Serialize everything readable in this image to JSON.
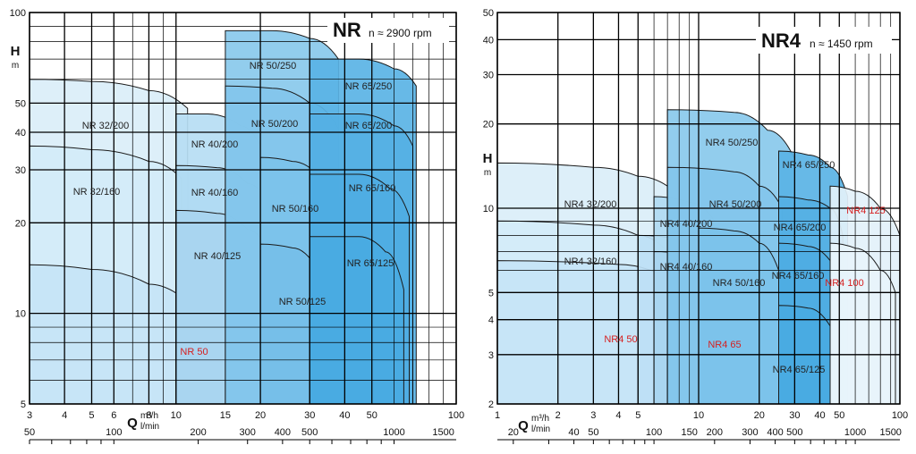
{
  "chart_data": [
    {
      "type": "area",
      "title": "NR",
      "subtitle": "n ≈ 2900 rpm",
      "ylabel": "H",
      "ylabel_unit": "m",
      "xlabel": "Q",
      "xlabel_units": [
        "m³/h",
        "l/min"
      ],
      "xscale": "log",
      "yscale": "log",
      "xlim": [
        3,
        100
      ],
      "ylim": [
        5,
        100
      ],
      "x_ticks_m3h": [
        "3",
        "4",
        "5",
        "6",
        "8",
        "10",
        "15",
        "20",
        "30",
        "40",
        "50",
        "100"
      ],
      "x_tick_vals_m3h": [
        3,
        4,
        5,
        6,
        8,
        10,
        15,
        20,
        30,
        40,
        50,
        100
      ],
      "x_ticks_lmin": [
        "50",
        "100",
        "200",
        "300",
        "400",
        "500",
        "1000",
        "1500"
      ],
      "x_tick_vals_lmin": [
        50,
        100,
        200,
        300,
        400,
        500,
        1000,
        1500
      ],
      "y_ticks": [
        "5",
        "10",
        "20",
        "30",
        "40",
        "50",
        "100"
      ],
      "y_tick_vals": [
        5,
        10,
        20,
        30,
        40,
        50,
        100
      ],
      "grid": true,
      "series": [
        {
          "name": "NR 32/200",
          "color": "#daeef9",
          "points": [
            [
              3,
              60
            ],
            [
              5,
              59
            ],
            [
              8,
              55
            ],
            [
              11,
              48
            ]
          ]
        },
        {
          "name": "NR 32/160",
          "color": "#d2ebf8",
          "points": [
            [
              3,
              36
            ],
            [
              5,
              35
            ],
            [
              8,
              32
            ],
            [
              10.5,
              28
            ]
          ]
        },
        {
          "name": "NR 50",
          "color": "#c5e4f6",
          "points": [
            [
              3,
              14.5
            ],
            [
              5,
              14
            ],
            [
              8,
              12.5
            ],
            [
              12,
              10
            ],
            [
              16,
              7.2
            ],
            [
              19,
              5.6
            ]
          ]
        },
        {
          "name": "NR 40/200",
          "color": "#b6ddf3",
          "points": [
            [
              10,
              46
            ],
            [
              13,
              46
            ],
            [
              17,
              42
            ],
            [
              20,
              36
            ]
          ]
        },
        {
          "name": "NR 40/160",
          "color": "#b0daf2",
          "points": [
            [
              10,
              31
            ],
            [
              14,
              30.5
            ],
            [
              18,
              27
            ],
            [
              22,
              22
            ]
          ]
        },
        {
          "name": "NR 40/125",
          "color": "#a8d5f0",
          "points": [
            [
              10,
              22
            ],
            [
              14,
              21.5
            ],
            [
              18,
              19
            ],
            [
              22,
              15
            ],
            [
              26,
              11
            ]
          ]
        },
        {
          "name": "NR 50/250",
          "color": "#89c9ec",
          "points": [
            [
              15,
              87
            ],
            [
              22,
              87
            ],
            [
              30,
              82
            ],
            [
              38,
              70
            ]
          ]
        },
        {
          "name": "NR 50/200",
          "color": "#83c6eb",
          "points": [
            [
              15,
              57
            ],
            [
              22,
              56
            ],
            [
              30,
              50
            ],
            [
              38,
              41
            ]
          ]
        },
        {
          "name": "NR 50/160",
          "color": "#7cc2ea",
          "points": [
            [
              20,
              33
            ],
            [
              26,
              32
            ],
            [
              33,
              28
            ],
            [
              40,
              22
            ]
          ]
        },
        {
          "name": "NR 50/125",
          "color": "#75bfe8",
          "points": [
            [
              20,
              17
            ],
            [
              26,
              16.5
            ],
            [
              32,
              14
            ],
            [
              38,
              11
            ]
          ]
        },
        {
          "name": "NR 65/250",
          "color": "#5ab3e5",
          "points": [
            [
              30,
              70
            ],
            [
              45,
              70
            ],
            [
              60,
              65
            ],
            [
              72,
              57
            ]
          ]
        },
        {
          "name": "NR 65/200",
          "color": "#55b0e4",
          "points": [
            [
              30,
              46
            ],
            [
              45,
              46
            ],
            [
              60,
              42
            ],
            [
              70,
              36
            ]
          ]
        },
        {
          "name": "NR 65/160",
          "color": "#4eade3",
          "points": [
            [
              30,
              29
            ],
            [
              45,
              29
            ],
            [
              58,
              26
            ],
            [
              68,
              21
            ]
          ]
        },
        {
          "name": "NR 65/125",
          "color": "#49aae2",
          "points": [
            [
              30,
              18
            ],
            [
              45,
              18
            ],
            [
              56,
              16
            ],
            [
              65,
              12
            ]
          ]
        }
      ],
      "annotations": [
        "NR 32/200",
        "NR 32/160",
        "NR 40/200",
        "NR 40/160",
        "NR 40/125",
        "NR 50/250",
        "NR 50/200",
        "NR 50/160",
        "NR 50/125",
        "NR 65/250",
        "NR 65/200",
        "NR 65/160",
        "NR 65/125",
        "NR 50"
      ]
    },
    {
      "type": "area",
      "title": "NR4",
      "subtitle": "n ≈ 1450 rpm",
      "ylabel": "H",
      "ylabel_unit": "m",
      "xlabel": "Q",
      "xlabel_units": [
        "m³/h",
        "l/min"
      ],
      "xscale": "log",
      "yscale": "log",
      "xlim": [
        1,
        100
      ],
      "ylim": [
        2,
        50
      ],
      "x_ticks_m3h": [
        "1",
        "2",
        "3",
        "4",
        "5",
        "10",
        "20",
        "30",
        "40",
        "50",
        "100"
      ],
      "x_tick_vals_m3h": [
        1,
        2,
        3,
        4,
        5,
        10,
        20,
        30,
        40,
        50,
        100
      ],
      "x_ticks_lmin": [
        "20",
        "40",
        "50",
        "100",
        "150",
        "200",
        "300",
        "400",
        "500",
        "1000",
        "1500"
      ],
      "x_tick_vals_lmin": [
        20,
        40,
        50,
        100,
        150,
        200,
        300,
        400,
        500,
        1000,
        1500
      ],
      "y_ticks": [
        "2",
        "3",
        "4",
        "5",
        "10",
        "20",
        "30",
        "40",
        "50"
      ],
      "y_tick_vals": [
        2,
        3,
        4,
        5,
        10,
        20,
        30,
        40,
        50
      ],
      "grid": true,
      "series": [
        {
          "name": "NR4 32/200",
          "color": "#daeef9",
          "points": [
            [
              1,
              14.5
            ],
            [
              3,
              14
            ],
            [
              5,
              13
            ],
            [
              7,
              12
            ]
          ]
        },
        {
          "name": "NR4 32/160",
          "color": "#d2ebf8",
          "points": [
            [
              1,
              9
            ],
            [
              3,
              8.7
            ],
            [
              5,
              8
            ],
            [
              7,
              7
            ]
          ]
        },
        {
          "name": "NR4 50",
          "color": "#c5e4f6",
          "points": [
            [
              1,
              6.5
            ],
            [
              4,
              6.3
            ],
            [
              8,
              5.3
            ],
            [
              12,
              4.2
            ],
            [
              15,
              3
            ]
          ]
        },
        {
          "name": "NR4 65",
          "color": "#bde0f5",
          "points": [
            [
              5,
              8
            ],
            [
              10,
              7.5
            ],
            [
              14,
              6
            ],
            [
              18,
              4.5
            ],
            [
              22,
              2
            ]
          ]
        },
        {
          "name": "NR4 40/200",
          "color": "#b0daf2",
          "points": [
            [
              6,
              11
            ],
            [
              9,
              10.5
            ],
            [
              12,
              9
            ]
          ]
        },
        {
          "name": "NR4 40/160",
          "color": "#a8d5f0",
          "points": [
            [
              6,
              7
            ],
            [
              9,
              6.8
            ],
            [
              12,
              6
            ]
          ]
        },
        {
          "name": "NR4 50/250",
          "color": "#89c9ec",
          "points": [
            [
              7,
              22.5
            ],
            [
              15,
              22
            ],
            [
              22,
              19
            ],
            [
              30,
              15
            ]
          ]
        },
        {
          "name": "NR4 50/200",
          "color": "#83c6eb",
          "points": [
            [
              7,
              14
            ],
            [
              15,
              13.5
            ],
            [
              20,
              12
            ],
            [
              26,
              10
            ]
          ]
        },
        {
          "name": "NR4 50/160",
          "color": "#7cc2ea",
          "points": [
            [
              10,
              8.5
            ],
            [
              15,
              8.3
            ],
            [
              20,
              7.5
            ],
            [
              25,
              6
            ]
          ]
        },
        {
          "name": "NR4 65/250",
          "color": "#5ab3e5",
          "points": [
            [
              25,
              16
            ],
            [
              35,
              15.5
            ],
            [
              45,
              14
            ],
            [
              55,
              11
            ]
          ]
        },
        {
          "name": "NR4 65/200",
          "color": "#55b0e4",
          "points": [
            [
              25,
              11
            ],
            [
              35,
              10.7
            ],
            [
              45,
              10
            ],
            [
              52,
              8
            ]
          ]
        },
        {
          "name": "NR4 65/160",
          "color": "#4eade3",
          "points": [
            [
              25,
              7.5
            ],
            [
              35,
              7.3
            ],
            [
              45,
              6.5
            ],
            [
              50,
              5
            ]
          ]
        },
        {
          "name": "NR4 65/125",
          "color": "#49aae2",
          "points": [
            [
              25,
              4.5
            ],
            [
              35,
              4.4
            ],
            [
              45,
              3.8
            ],
            [
              48,
              2
            ]
          ]
        },
        {
          "name": "NR4 125",
          "color": "#e3f1fa",
          "points": [
            [
              45,
              12
            ],
            [
              60,
              11.5
            ],
            [
              80,
              10
            ],
            [
              100,
              8
            ]
          ]
        },
        {
          "name": "NR4 100",
          "color": "#e8f4fb",
          "points": [
            [
              45,
              7.5
            ],
            [
              60,
              7.2
            ],
            [
              80,
              6
            ],
            [
              95,
              5
            ]
          ]
        }
      ],
      "annotations": [
        "NR4 32/200",
        "NR4 32/160",
        "NR4 40/200",
        "NR4 40/160",
        "NR4 50/250",
        "NR4 50/200",
        "NR4 50/160",
        "NR4 65/250",
        "NR4 65/200",
        "NR4 65/160",
        "NR4 65/125",
        "NR4 125",
        "NR4 100",
        "NR4 50",
        "NR4 65"
      ]
    }
  ]
}
